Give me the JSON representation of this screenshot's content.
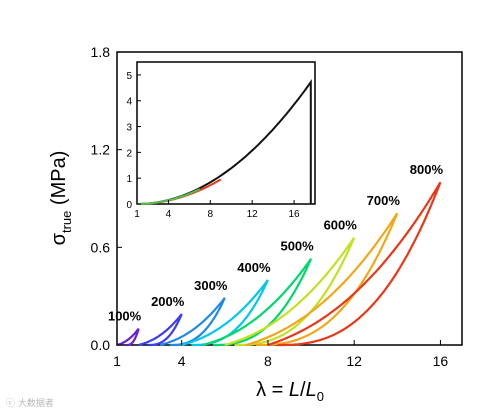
{
  "chart_data": [
    {
      "type": "line",
      "xlabel": "λ = L/L₀",
      "ylabel": "σtrue (MPa)",
      "xlim": [
        1,
        17
      ],
      "ylim": [
        0,
        1.8
      ],
      "x_ticks": [
        1,
        4,
        8,
        12,
        16
      ],
      "y_ticks": [
        "0.0",
        "0.6",
        "1.2",
        "1.8"
      ],
      "series": [
        {
          "name": "100%",
          "color": "#6a1fd6",
          "start": 1.0,
          "max_stretch": 2.0,
          "peak": 0.1
        },
        {
          "name": "200%",
          "color": "#3a3ef0",
          "start": 2.0,
          "max_stretch": 4.0,
          "peak": 0.19
        },
        {
          "name": "300%",
          "color": "#1f8ae6",
          "start": 3.0,
          "max_stretch": 6.0,
          "peak": 0.29
        },
        {
          "name": "400%",
          "color": "#00c8e8",
          "start": 4.0,
          "max_stretch": 8.0,
          "peak": 0.4
        },
        {
          "name": "500%",
          "color": "#00d86c",
          "start": 5.0,
          "max_stretch": 10.0,
          "peak": 0.53
        },
        {
          "name": "600%",
          "color": "#c4e020",
          "start": 6.0,
          "max_stretch": 12.0,
          "peak": 0.66
        },
        {
          "name": "700%",
          "color": "#f0a818",
          "start": 7.0,
          "max_stretch": 14.0,
          "peak": 0.81
        },
        {
          "name": "800%",
          "color": "#e83818",
          "start": 8.0,
          "max_stretch": 16.0,
          "peak": 1.0
        }
      ]
    },
    {
      "type": "line",
      "xlim": [
        1,
        18
      ],
      "ylim": [
        0,
        5.5
      ],
      "x_ticks": [
        1,
        4,
        8,
        12,
        16
      ],
      "y_ticks": [
        "0",
        "1",
        "2",
        "3",
        "4",
        "5"
      ],
      "series": [
        {
          "color": "#111111",
          "start": 1.0,
          "end": 17.6,
          "peak": 4.72
        },
        {
          "color": "#e83818",
          "start": 1.0,
          "end": 9.0,
          "peak": 0.95
        },
        {
          "color": "#50c050",
          "start": 1.0,
          "end": 7.0,
          "peak": 0.58
        }
      ]
    }
  ],
  "watermark": "ⓒ 大数据者"
}
